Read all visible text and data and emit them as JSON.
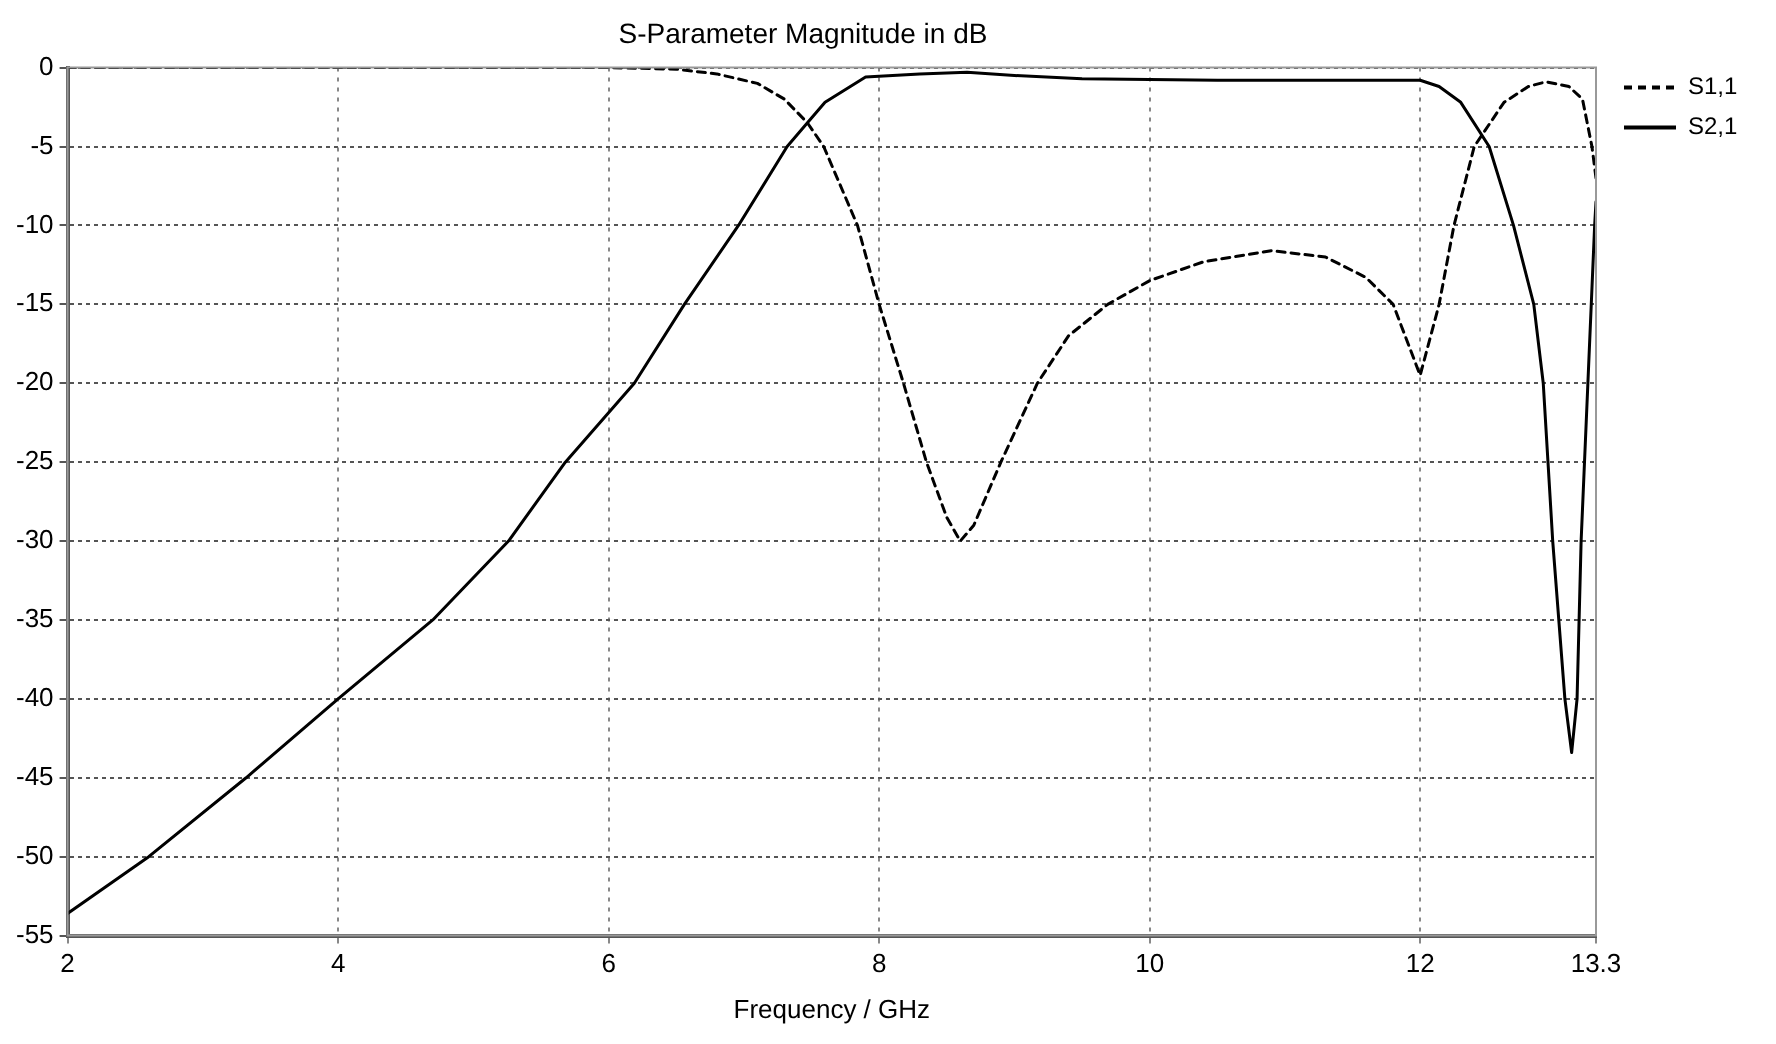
{
  "chart_data": {
    "type": "line",
    "title": "S-Parameter Magnitude in dB",
    "xlabel": "Frequency / GHz",
    "xlim": [
      2,
      13.3
    ],
    "xticks": [
      2,
      4,
      6,
      8,
      10,
      12,
      13.3
    ],
    "ylim": [
      -55,
      0
    ],
    "yticks": [
      0,
      -5,
      -10,
      -15,
      -20,
      -25,
      -30,
      -35,
      -40,
      -45,
      -50,
      -55
    ],
    "grid": true,
    "legend": "top right",
    "marker": "none",
    "series": [
      {
        "name": "S1,1",
        "color": "#000000",
        "line_style": "dashed",
        "x": [
          2,
          4,
          6,
          6.5,
          6.8,
          7.1,
          7.3,
          7.47,
          7.59,
          7.84,
          8.0,
          8.18,
          8.35,
          8.5,
          8.6,
          8.7,
          8.9,
          9.17,
          9.4,
          9.69,
          10,
          10.4,
          10.9,
          11.3,
          11.6,
          11.8,
          12.0,
          12.14,
          12.25,
          12.4,
          12.62,
          12.8,
          12.93,
          13.1,
          13.2,
          13.27,
          13.3
        ],
        "values": [
          0,
          0,
          0,
          -0.1,
          -0.4,
          -1,
          -2,
          -3.5,
          -5,
          -10,
          -15,
          -20,
          -25,
          -28.5,
          -30,
          -29,
          -25,
          -20,
          -17,
          -15,
          -13.5,
          -12.3,
          -11.6,
          -12,
          -13.3,
          -15,
          -19.5,
          -15,
          -10,
          -5,
          -2.2,
          -1.2,
          -0.9,
          -1.2,
          -2,
          -5,
          -7
        ]
      },
      {
        "name": "S2,1",
        "color": "#000000",
        "line_style": "solid",
        "x": [
          2,
          2.6,
          3.32,
          4,
          4.7,
          5.26,
          5.68,
          6.19,
          6.56,
          6.96,
          7.32,
          7.47,
          7.6,
          7.9,
          8.3,
          8.65,
          9.0,
          9.5,
          10.5,
          11.5,
          12.0,
          12.14,
          12.3,
          12.51,
          12.69,
          12.84,
          12.91,
          12.98,
          13.07,
          13.12,
          13.16,
          13.19,
          13.24,
          13.29,
          13.3
        ],
        "values": [
          -53.6,
          -50,
          -45,
          -40,
          -35,
          -30,
          -25,
          -20,
          -15,
          -10,
          -5,
          -3.5,
          -2.2,
          -0.6,
          -0.4,
          -0.3,
          -0.5,
          -0.7,
          -0.8,
          -0.8,
          -0.8,
          -1.2,
          -2.2,
          -5,
          -10,
          -15,
          -20,
          -30,
          -40,
          -43.4,
          -40,
          -30,
          -20,
          -10,
          -8.5
        ]
      }
    ]
  }
}
